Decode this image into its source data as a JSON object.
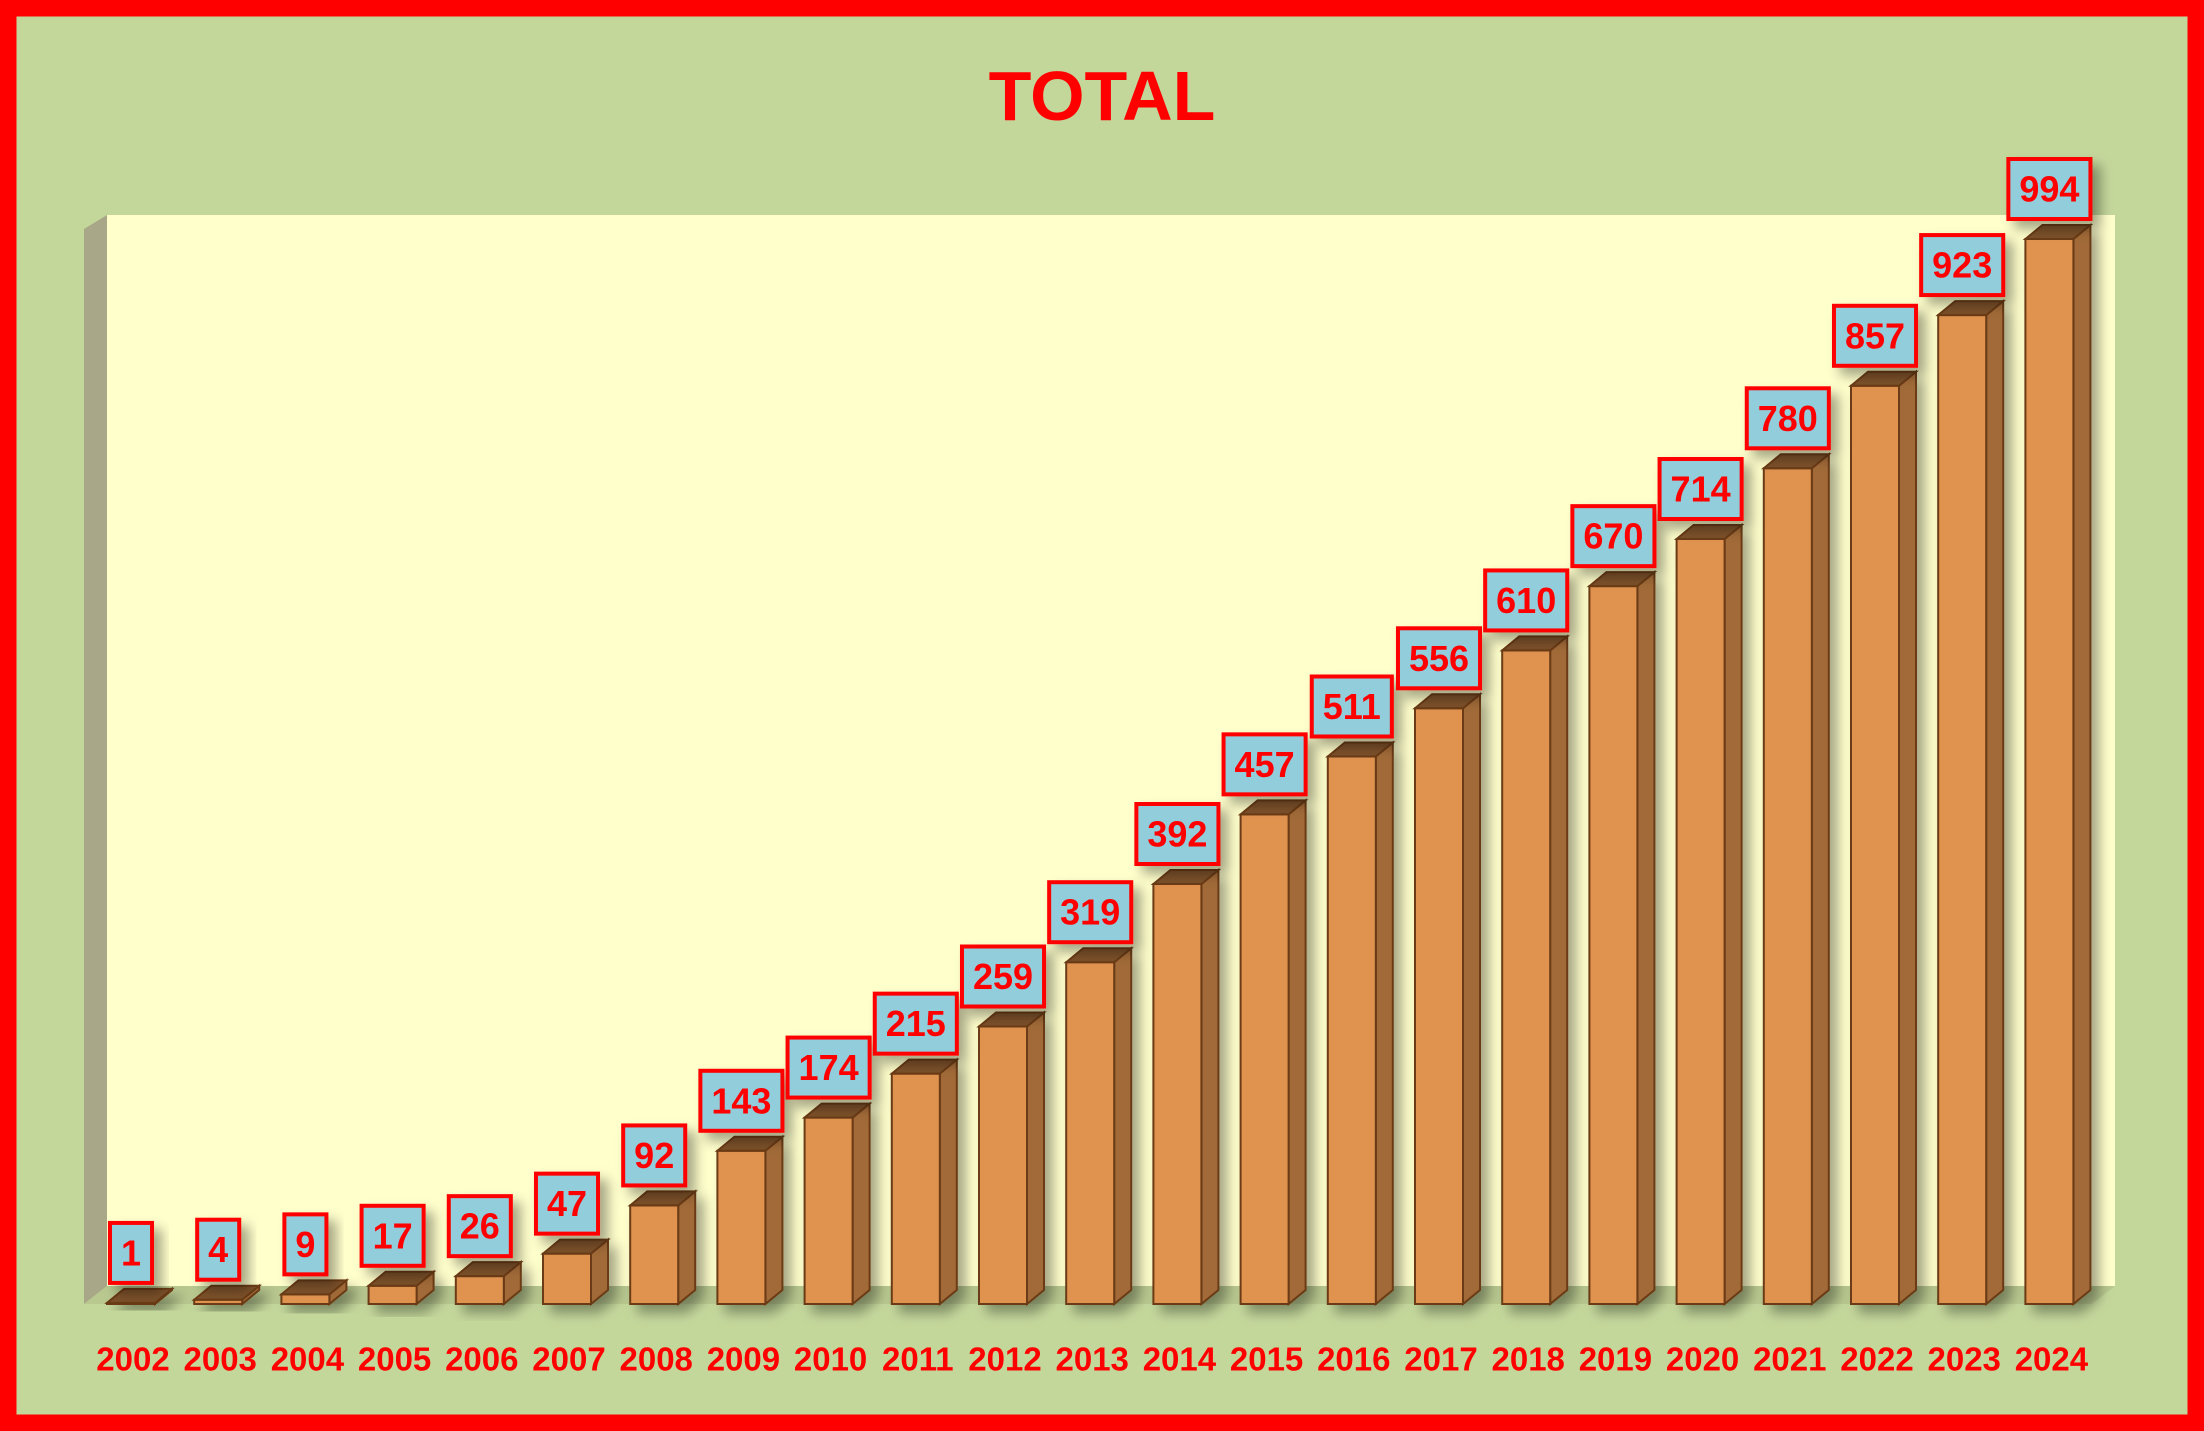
{
  "chart_data": {
    "type": "bar3d",
    "title": "TOTAL",
    "categories": [
      "2002",
      "2003",
      "2004",
      "2005",
      "2006",
      "2007",
      "2008",
      "2009",
      "2010",
      "2011",
      "2012",
      "2013",
      "2014",
      "2015",
      "2016",
      "2017",
      "2018",
      "2019",
      "2020",
      "2021",
      "2022",
      "2023",
      "2024"
    ],
    "values": [
      1,
      4,
      9,
      17,
      26,
      47,
      92,
      143,
      174,
      215,
      259,
      319,
      392,
      457,
      511,
      556,
      610,
      670,
      714,
      780,
      857,
      923,
      994
    ],
    "color": "#E0934F"
  }
}
